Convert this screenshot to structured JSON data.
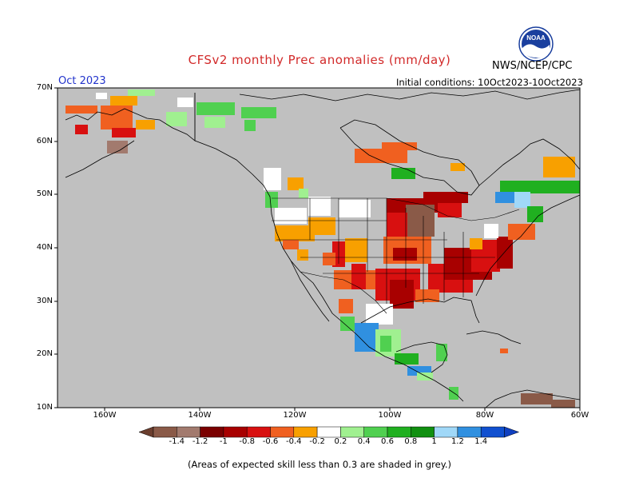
{
  "title": "CFSv2 monthly Prec anomalies (mm/day)",
  "month": "Oct 2023",
  "initial_conditions": "Initial conditions: 10Oct2023-10Oct2023",
  "agency": "NWS/NCEP/CPC",
  "logo_text": "NOAA",
  "footnote": "(Areas of expected skill less than 0.3 are shaded in grey.)",
  "map": {
    "lon_range": [
      -170,
      -60
    ],
    "lat_range": [
      10,
      70
    ],
    "mask_color": "#c0c0c0",
    "lat_labels": [
      "70N",
      "60N",
      "50N",
      "40N",
      "30N",
      "20N",
      "10N"
    ],
    "lon_labels": [
      "160W",
      "140W",
      "120W",
      "100W",
      "80W",
      "60W"
    ]
  },
  "colorbar": {
    "labels": [
      "-1.4",
      "-1.2",
      "-1",
      "-0.8",
      "-0.6",
      "-0.4",
      "-0.2",
      "0.2",
      "0.4",
      "0.6",
      "0.8",
      "1",
      "1.2",
      "1.4"
    ],
    "colors": [
      "#8a5a48",
      "#a27a6e",
      "#7a0000",
      "#a80000",
      "#d81010",
      "#f06020",
      "#f8a000",
      "#ffffff",
      "#a0f090",
      "#50d050",
      "#20b020",
      "#109010",
      "#a0d8f8",
      "#3090e0",
      "#1050d0"
    ],
    "low_end_color": "#6b3e2e",
    "high_end_color": "#1040c0"
  }
}
